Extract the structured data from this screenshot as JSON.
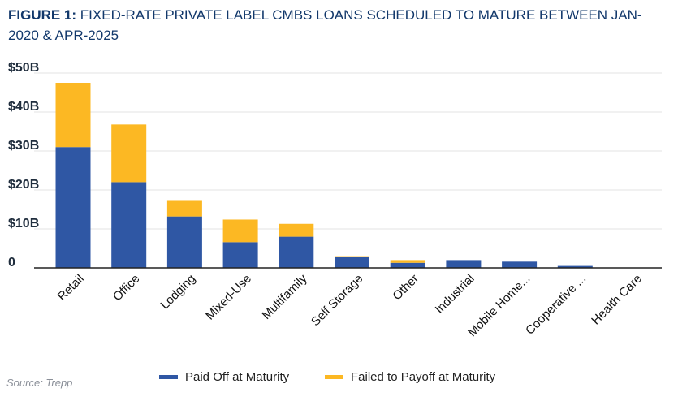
{
  "figure": {
    "label": "FIGURE 1:",
    "title": "FIXED-RATE PRIVATE LABEL CMBS LOANS SCHEDULED TO MATURE BETWEEN JAN-2020 & APR-2025",
    "source": "Source: Trepp"
  },
  "chart_data": {
    "type": "bar",
    "stacked": true,
    "categories": [
      "Retail",
      "Office",
      "Lodging",
      "Mixed-Use",
      "Multifamily",
      "Self Storage",
      "Other",
      "Industrial",
      "Mobile Home...",
      "Cooperative ...",
      "Health Care"
    ],
    "series": [
      {
        "name": "Paid Off at Maturity",
        "color": "#2f57a4",
        "values": [
          31.0,
          22.0,
          13.2,
          6.6,
          8.0,
          2.8,
          1.3,
          2.0,
          1.6,
          0.5,
          0.1
        ]
      },
      {
        "name": "Failed to Payoff at Maturity",
        "color": "#fcb823",
        "values": [
          16.5,
          14.8,
          4.2,
          5.8,
          3.3,
          0.2,
          0.7,
          0.0,
          0.0,
          0.0,
          0.0
        ]
      }
    ],
    "ylim": [
      0,
      50
    ],
    "yticks": [
      0,
      10,
      20,
      30,
      40,
      50
    ],
    "ytick_labels": [
      "0",
      "$10B",
      "$20B",
      "$30B",
      "$40B",
      "$50B"
    ],
    "grid": true,
    "legend": "bottom"
  }
}
